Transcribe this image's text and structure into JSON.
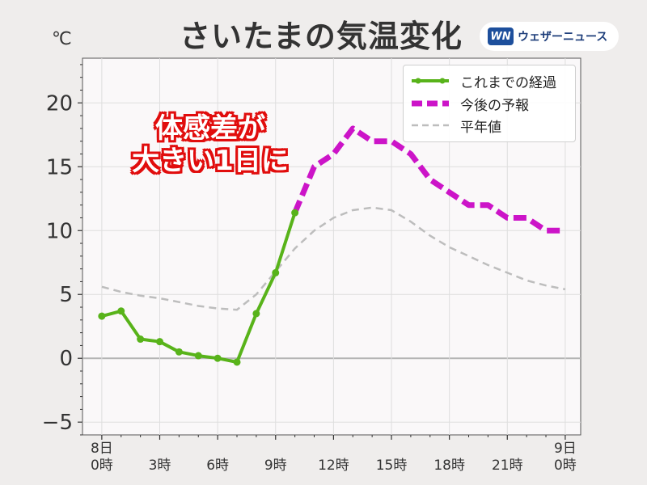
{
  "title": "さいたまの気温変化",
  "brand": {
    "logo": "WN",
    "name": "ウェザーニュース"
  },
  "annotation": {
    "line1": "体感差が",
    "line2": "大きい1日に"
  },
  "colors": {
    "observed": "#58b31a",
    "forecast": "#cc14c8",
    "normal": "#bdbdbd"
  },
  "chart_data": {
    "type": "line",
    "ylabel": "℃",
    "ylim": [
      -6,
      23.5
    ],
    "xlim": [
      -1,
      24.8
    ],
    "yticks": [
      -5,
      0,
      5,
      10,
      15,
      20
    ],
    "ytick_labels": [
      "−5",
      "0",
      "5",
      "10",
      "15",
      "20"
    ],
    "xticks": [
      {
        "x": 0,
        "line1": "8日",
        "line2": "0時"
      },
      {
        "x": 3,
        "line1": "",
        "line2": "3時"
      },
      {
        "x": 6,
        "line1": "",
        "line2": "6時"
      },
      {
        "x": 9,
        "line1": "",
        "line2": "9時"
      },
      {
        "x": 12,
        "line1": "",
        "line2": "12時"
      },
      {
        "x": 15,
        "line1": "",
        "line2": "15時"
      },
      {
        "x": 18,
        "line1": "",
        "line2": "18時"
      },
      {
        "x": 21,
        "line1": "",
        "line2": "21時"
      },
      {
        "x": 24,
        "line1": "9日",
        "line2": "0時"
      }
    ],
    "grid": true,
    "legend_position": "top-right",
    "series": [
      {
        "name": "これまでの経過",
        "style": "solid-markers",
        "x": [
          0,
          1,
          2,
          3,
          4,
          5,
          6,
          7,
          8,
          9,
          10
        ],
        "y": [
          3.3,
          3.7,
          1.5,
          1.3,
          0.5,
          0.2,
          0.0,
          -0.3,
          3.5,
          6.7,
          11.4
        ]
      },
      {
        "name": "今後の予報",
        "style": "dashed-thick",
        "x": [
          10,
          11,
          12,
          13,
          14,
          15,
          16,
          17,
          18,
          19,
          20,
          21,
          22,
          23,
          24
        ],
        "y": [
          11.4,
          15,
          16,
          18,
          17,
          17,
          16,
          14,
          13,
          12,
          12,
          11,
          11,
          10,
          10
        ]
      },
      {
        "name": "平年値",
        "style": "dashed-thin",
        "x": [
          0,
          1,
          2,
          3,
          4,
          5,
          6,
          7,
          8,
          9,
          10,
          11,
          12,
          13,
          14,
          15,
          16,
          17,
          18,
          19,
          20,
          21,
          22,
          23,
          24
        ],
        "y": [
          5.6,
          5.2,
          4.9,
          4.7,
          4.4,
          4.1,
          3.9,
          3.8,
          5.0,
          6.8,
          8.6,
          10.0,
          11.0,
          11.6,
          11.8,
          11.6,
          10.7,
          9.6,
          8.7,
          8.0,
          7.3,
          6.7,
          6.1,
          5.7,
          5.4
        ]
      }
    ]
  }
}
